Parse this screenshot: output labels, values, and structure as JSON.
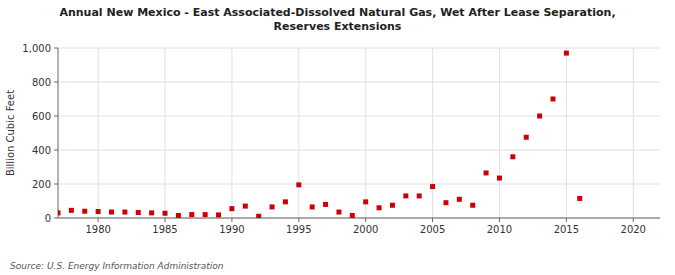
{
  "chart_data": {
    "type": "scatter",
    "title": "Annual New Mexico - East Associated-Dissolved Natural Gas, Wet After Lease Separation,\nReserves Extensions",
    "ylabel": "Billion Cubic Feet",
    "source": "Source: U.S. Energy Information Administration",
    "color": "#cc0000",
    "marker": "square",
    "grid": true,
    "xlim": [
      1977,
      2022
    ],
    "xticks": [
      1980,
      1985,
      1990,
      1995,
      2000,
      2005,
      2010,
      2015,
      2020
    ],
    "ylim": [
      0,
      1000
    ],
    "yticks": [
      0,
      200,
      400,
      600,
      800,
      {
        "value": 1000,
        "label": "1,000"
      }
    ],
    "x": [
      1977,
      1978,
      1979,
      1980,
      1981,
      1982,
      1983,
      1984,
      1985,
      1986,
      1987,
      1988,
      1989,
      1990,
      1991,
      1992,
      1993,
      1994,
      1995,
      1996,
      1997,
      1998,
      1999,
      2000,
      2001,
      2002,
      2003,
      2004,
      2005,
      2006,
      2007,
      2008,
      2009,
      2010,
      2011,
      2012,
      2013,
      2014,
      2015,
      2016
    ],
    "values": [
      30,
      45,
      40,
      38,
      35,
      35,
      32,
      30,
      28,
      15,
      20,
      20,
      18,
      55,
      70,
      10,
      65,
      95,
      195,
      65,
      80,
      35,
      15,
      95,
      60,
      75,
      130,
      130,
      185,
      90,
      110,
      75,
      265,
      235,
      360,
      475,
      600,
      700,
      970,
      115
    ]
  }
}
